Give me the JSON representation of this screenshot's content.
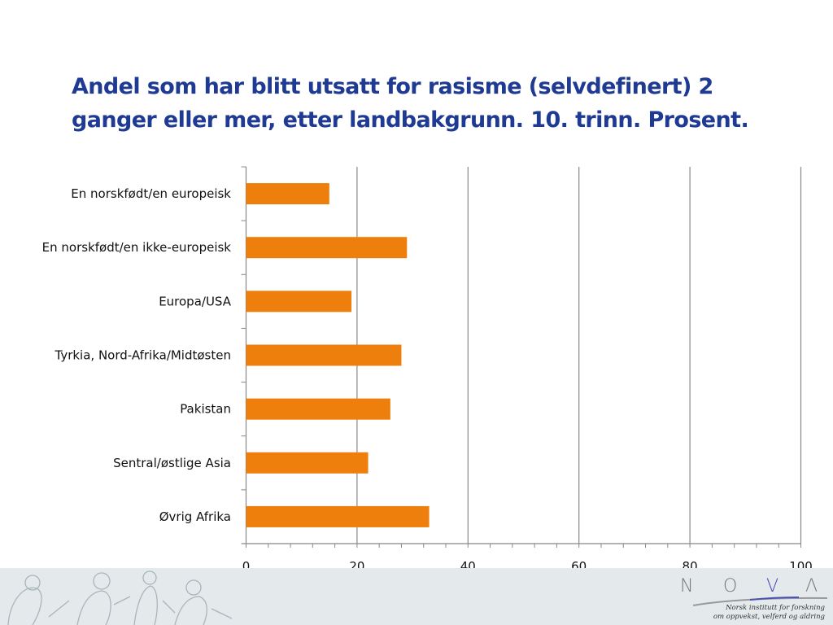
{
  "chart_data": {
    "type": "bar",
    "orientation": "horizontal",
    "title": "Andel som har blitt utsatt for rasisme (selvdefinert) 2 ganger eller mer, etter landbakgrunn. 10. trinn. Prosent.",
    "categories": [
      "En norskfødt/en europeisk",
      "En norskfødt/en ikke-europeisk",
      "Europa/USA",
      "Tyrkia, Nord-Afrika/Midtøsten",
      "Pakistan",
      "Sentral/østlige Asia",
      "Øvrig Afrika"
    ],
    "values": [
      15,
      29,
      19,
      28,
      26,
      22,
      33
    ],
    "xlim": [
      0,
      100
    ],
    "xticks": [
      "0",
      "20",
      "40",
      "60",
      "80",
      "100"
    ],
    "grid": true,
    "bar_color": "#ee7f0d",
    "title_color": "#1f3a93"
  },
  "footer": {
    "logo_letters": [
      "N",
      "O",
      "V",
      "Λ"
    ],
    "logo_tagline": [
      "Norsk institutt for forskning",
      "om oppvekst, velferd og aldring"
    ]
  }
}
